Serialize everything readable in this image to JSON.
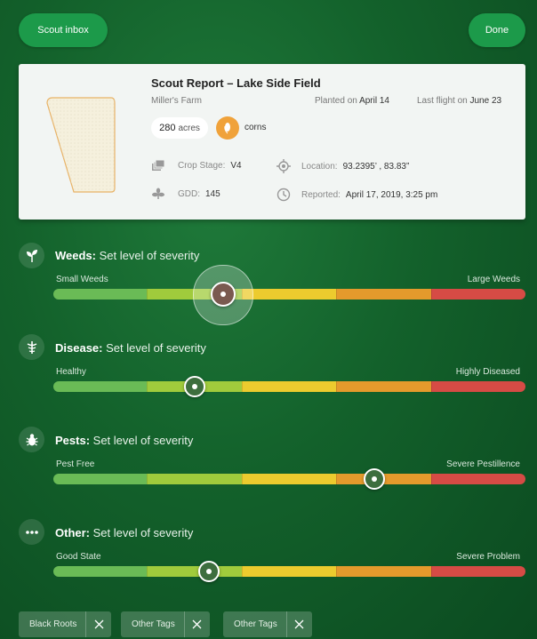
{
  "header": {
    "inbox_label": "Scout inbox",
    "done_label": "Done"
  },
  "report": {
    "title": "Scout Report – Lake Side Field",
    "farm": "Miller's Farm",
    "planted_prefix": "Planted on",
    "planted_date": "April 14",
    "flight_prefix": "Last flight on",
    "flight_date": "June 23",
    "acres_value": "280",
    "acres_unit": "acres",
    "crop": "corns",
    "crop_stage_label": "Crop Stage:",
    "crop_stage_value": "V4",
    "gdd_label": "GDD:",
    "gdd_value": "145",
    "location_label": "Location:",
    "location_value": "93.2395’ , 83.83”",
    "reported_label": "Reported:",
    "reported_value": "April 17, 2019, 3:25 pm"
  },
  "severity": {
    "prompt": "Set level of severity",
    "weeds": {
      "name": "Weeds:",
      "low": "Small Weeds",
      "high": "Large Weeds",
      "level": 0.36
    },
    "disease": {
      "name": "Disease:",
      "low": "Healthy",
      "high": "Highly Diseased",
      "level": 0.3
    },
    "pests": {
      "name": "Pests:",
      "low": "Pest Free",
      "high": "Severe Pestillence",
      "level": 0.68
    },
    "other": {
      "name": "Other:",
      "low": "Good State",
      "high": "Severe Problem",
      "level": 0.33
    }
  },
  "tags": [
    {
      "label": "Black Roots"
    },
    {
      "label": "Other Tags"
    },
    {
      "label": "Other Tags"
    }
  ],
  "colors": {
    "accent": "#1c9a4a",
    "crop_badge": "#f0a23a",
    "severity_scale": [
      "#6abb56",
      "#a0cb3c",
      "#eccb2e",
      "#e49a2c",
      "#d64b45"
    ]
  }
}
